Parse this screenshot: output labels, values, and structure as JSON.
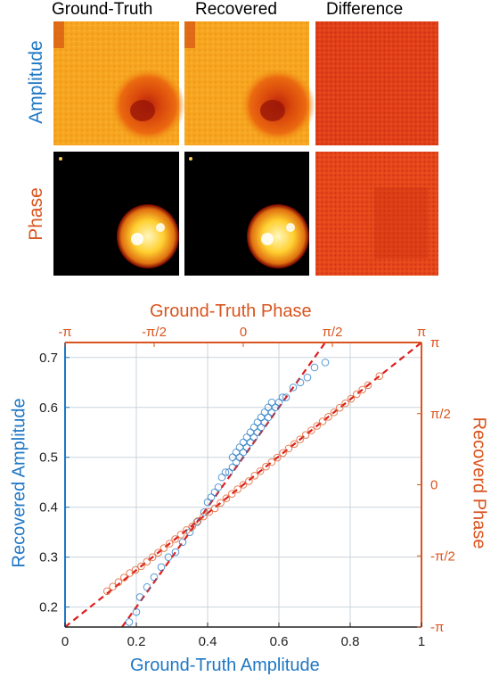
{
  "panel": {
    "columns": [
      "Ground-Truth",
      "Recovered",
      "Difference"
    ],
    "rows": [
      "Amplitude",
      "Phase"
    ]
  },
  "colors": {
    "amplitude": "#1f77c4",
    "phase": "#d9541e",
    "fit": "#e01c1c",
    "grid": "#c8d3dc"
  },
  "chart_data": {
    "type": "scatter",
    "xlabel": "Ground-Truth Amplitude",
    "ylabel": "Recovered Amplitude",
    "top_label": "Ground-Truth Phase",
    "right_label": "Recoverd Phase",
    "xlim": [
      0,
      1
    ],
    "ylim": [
      0.16,
      0.73
    ],
    "x_ticks": [
      "0",
      "0.2",
      "0.4",
      "0.6",
      "0.8",
      "1"
    ],
    "y_ticks": [
      "0.2",
      "0.3",
      "0.4",
      "0.5",
      "0.6",
      "0.7"
    ],
    "top_ticks": [
      "-π",
      "-π/2",
      "0",
      "π/2",
      "π"
    ],
    "right_ticks": [
      "π",
      "π/2",
      "0",
      "-π/2",
      "-π"
    ],
    "grid": true,
    "series": [
      {
        "name": "Amplitude",
        "axes": "bottom-left",
        "x": [
          0.18,
          0.2,
          0.21,
          0.23,
          0.25,
          0.27,
          0.29,
          0.31,
          0.33,
          0.35,
          0.37,
          0.39,
          0.4,
          0.41,
          0.42,
          0.43,
          0.44,
          0.45,
          0.46,
          0.47,
          0.47,
          0.48,
          0.48,
          0.49,
          0.49,
          0.5,
          0.5,
          0.51,
          0.51,
          0.52,
          0.52,
          0.53,
          0.53,
          0.54,
          0.54,
          0.55,
          0.55,
          0.56,
          0.56,
          0.57,
          0.57,
          0.58,
          0.58,
          0.59,
          0.6,
          0.61,
          0.62,
          0.64,
          0.66,
          0.68,
          0.7,
          0.73
        ],
        "y": [
          0.17,
          0.19,
          0.22,
          0.24,
          0.26,
          0.28,
          0.3,
          0.31,
          0.33,
          0.35,
          0.37,
          0.39,
          0.41,
          0.42,
          0.43,
          0.44,
          0.46,
          0.47,
          0.47,
          0.48,
          0.5,
          0.49,
          0.51,
          0.5,
          0.52,
          0.51,
          0.53,
          0.52,
          0.54,
          0.53,
          0.55,
          0.54,
          0.56,
          0.55,
          0.57,
          0.56,
          0.58,
          0.57,
          0.59,
          0.58,
          0.6,
          0.59,
          0.61,
          0.6,
          0.61,
          0.62,
          0.62,
          0.64,
          0.65,
          0.66,
          0.68,
          0.69
        ]
      },
      {
        "name": "Phase",
        "axes": "top-right",
        "x": [
          -2.4,
          -2.3,
          -2.2,
          -2.1,
          -2.0,
          -1.9,
          -1.8,
          -1.7,
          -1.6,
          -1.5,
          -1.4,
          -1.3,
          -1.2,
          -1.1,
          -1.0,
          -0.9,
          -0.8,
          -0.7,
          -0.6,
          -0.5,
          -0.4,
          -0.3,
          -0.2,
          -0.1,
          0.0,
          0.1,
          0.2,
          0.3,
          0.4,
          0.5,
          0.6,
          0.7,
          0.8,
          0.9,
          1.0,
          1.1,
          1.2,
          1.3,
          1.4,
          1.5,
          1.6,
          1.7,
          1.8,
          1.9,
          2.0,
          2.1,
          2.2,
          2.4
        ],
        "y": [
          -2.35,
          -2.25,
          -2.15,
          -2.05,
          -1.95,
          -1.88,
          -1.8,
          -1.7,
          -1.6,
          -1.5,
          -1.4,
          -1.3,
          -1.2,
          -1.1,
          -1.0,
          -0.92,
          -0.8,
          -0.7,
          -0.6,
          -0.52,
          -0.4,
          -0.3,
          -0.2,
          -0.1,
          0.0,
          0.08,
          0.2,
          0.3,
          0.4,
          0.5,
          0.6,
          0.7,
          0.8,
          0.9,
          1.0,
          1.1,
          1.2,
          1.3,
          1.4,
          1.5,
          1.6,
          1.7,
          1.8,
          1.9,
          2.0,
          2.1,
          2.2,
          2.4
        ]
      }
    ]
  }
}
